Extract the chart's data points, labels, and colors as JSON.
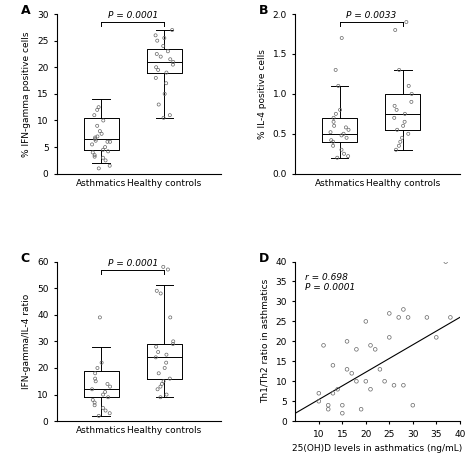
{
  "panel_A": {
    "label": "A",
    "ylabel": "% IFN-gamma positive cells",
    "xlabels": [
      "Asthmatics",
      "Healthy controls"
    ],
    "ylim": [
      0,
      30
    ],
    "yticks": [
      0,
      5,
      10,
      15,
      20,
      25,
      30
    ],
    "pvalue": "P = 0.0001",
    "groups": {
      "Asthmatics": {
        "median": 6.5,
        "q1": 4.5,
        "q3": 10.5,
        "whislo": 2.0,
        "whishi": 14.0,
        "fliers": [
          1.0,
          1.5,
          2.5,
          3.0,
          3.2,
          3.5,
          4.0,
          4.2,
          4.5,
          5.0,
          5.5,
          6.0,
          6.0,
          6.2,
          6.5,
          6.8,
          7.0,
          7.5,
          8.0,
          9.0,
          10.0,
          11.0,
          12.0,
          12.5
        ]
      },
      "Healthy controls": {
        "median": 21.0,
        "q1": 19.0,
        "q3": 23.5,
        "whislo": 10.5,
        "whishi": 27.0,
        "fliers": [
          10.5,
          11.0,
          13.0,
          15.0,
          17.0,
          18.0,
          19.0,
          19.5,
          20.0,
          20.5,
          21.0,
          21.5,
          22.0,
          22.5,
          23.0,
          24.0,
          25.0,
          25.5,
          26.0,
          27.0
        ]
      }
    },
    "bracket_y": 28.5,
    "bracket_drop": 0.8
  },
  "panel_B": {
    "label": "B",
    "ylabel": "% IL-4 positive cells",
    "xlabels": [
      "Asthmatics",
      "Healthy controls"
    ],
    "ylim": [
      0.0,
      2.0
    ],
    "yticks": [
      0.0,
      0.5,
      1.0,
      1.5,
      2.0
    ],
    "pvalue": "P = 0.0033",
    "groups": {
      "Asthmatics": {
        "median": 0.5,
        "q1": 0.4,
        "q3": 0.7,
        "whislo": 0.2,
        "whishi": 1.1,
        "fliers": [
          0.2,
          0.22,
          0.25,
          0.3,
          0.35,
          0.4,
          0.42,
          0.45,
          0.48,
          0.5,
          0.52,
          0.55,
          0.58,
          0.6,
          0.65,
          0.7,
          0.75,
          0.8,
          1.1,
          1.3,
          1.7
        ]
      },
      "Healthy controls": {
        "median": 0.75,
        "q1": 0.55,
        "q3": 1.0,
        "whislo": 0.3,
        "whishi": 1.3,
        "fliers": [
          0.3,
          0.35,
          0.4,
          0.45,
          0.5,
          0.55,
          0.6,
          0.65,
          0.7,
          0.75,
          0.8,
          0.85,
          0.9,
          1.0,
          1.1,
          1.3,
          1.8,
          1.9
        ]
      }
    },
    "bracket_y": 1.9,
    "bracket_drop": 0.05
  },
  "panel_C": {
    "label": "C",
    "ylabel": "IFN-gamma/IL-4 ratio",
    "xlabels": [
      "Asthmatics",
      "Healthy controls"
    ],
    "ylim": [
      0,
      60
    ],
    "yticks": [
      0,
      10,
      20,
      30,
      40,
      50,
      60
    ],
    "pvalue": "P = 0.0001",
    "groups": {
      "Asthmatics": {
        "median": 12.0,
        "q1": 9.0,
        "q3": 19.0,
        "whislo": 2.0,
        "whishi": 28.0,
        "fliers": [
          2.0,
          3.0,
          4.0,
          5.0,
          6.0,
          7.0,
          8.0,
          9.0,
          10.0,
          11.0,
          12.0,
          13.0,
          14.0,
          15.0,
          16.0,
          18.0,
          20.0,
          22.0,
          39.0
        ]
      },
      "Healthy controls": {
        "median": 24.0,
        "q1": 16.0,
        "q3": 29.0,
        "whislo": 9.0,
        "whishi": 51.0,
        "fliers": [
          9.0,
          10.0,
          12.0,
          13.0,
          14.0,
          15.0,
          16.0,
          18.0,
          20.0,
          22.0,
          24.0,
          25.0,
          26.0,
          28.0,
          29.0,
          30.0,
          39.0,
          48.0,
          49.0,
          57.0,
          58.0
        ]
      }
    },
    "bracket_y": 57.0,
    "bracket_drop": 1.5
  },
  "panel_D": {
    "label": "D",
    "xlabel": "25(OH)D levels in asthmatics (ng/mL)",
    "ylabel": "Th1/Th2 ratio in asthmatics",
    "xlim": [
      5,
      40
    ],
    "ylim": [
      0,
      40
    ],
    "xticks": [
      10,
      15,
      20,
      25,
      30,
      35,
      40
    ],
    "yticks": [
      0,
      5,
      10,
      15,
      20,
      25,
      30,
      35,
      40
    ],
    "annotation": "r = 0.698\nP = 0.0001",
    "scatter_x": [
      10,
      10,
      11,
      12,
      12,
      13,
      13,
      14,
      15,
      15,
      16,
      16,
      17,
      18,
      18,
      19,
      20,
      20,
      21,
      21,
      22,
      23,
      24,
      25,
      25,
      26,
      27,
      28,
      28,
      29,
      30,
      33,
      35,
      37,
      38
    ],
    "scatter_y": [
      7,
      5,
      19,
      3,
      4,
      14,
      7,
      8,
      4,
      2,
      13,
      20,
      12,
      10,
      18,
      3,
      25,
      10,
      19,
      8,
      18,
      13,
      10,
      21,
      27,
      9,
      26,
      28,
      9,
      26,
      4,
      26,
      21,
      40,
      26
    ],
    "line_x": [
      5,
      40
    ],
    "line_y": [
      2,
      26
    ]
  },
  "background_color": "#ffffff"
}
